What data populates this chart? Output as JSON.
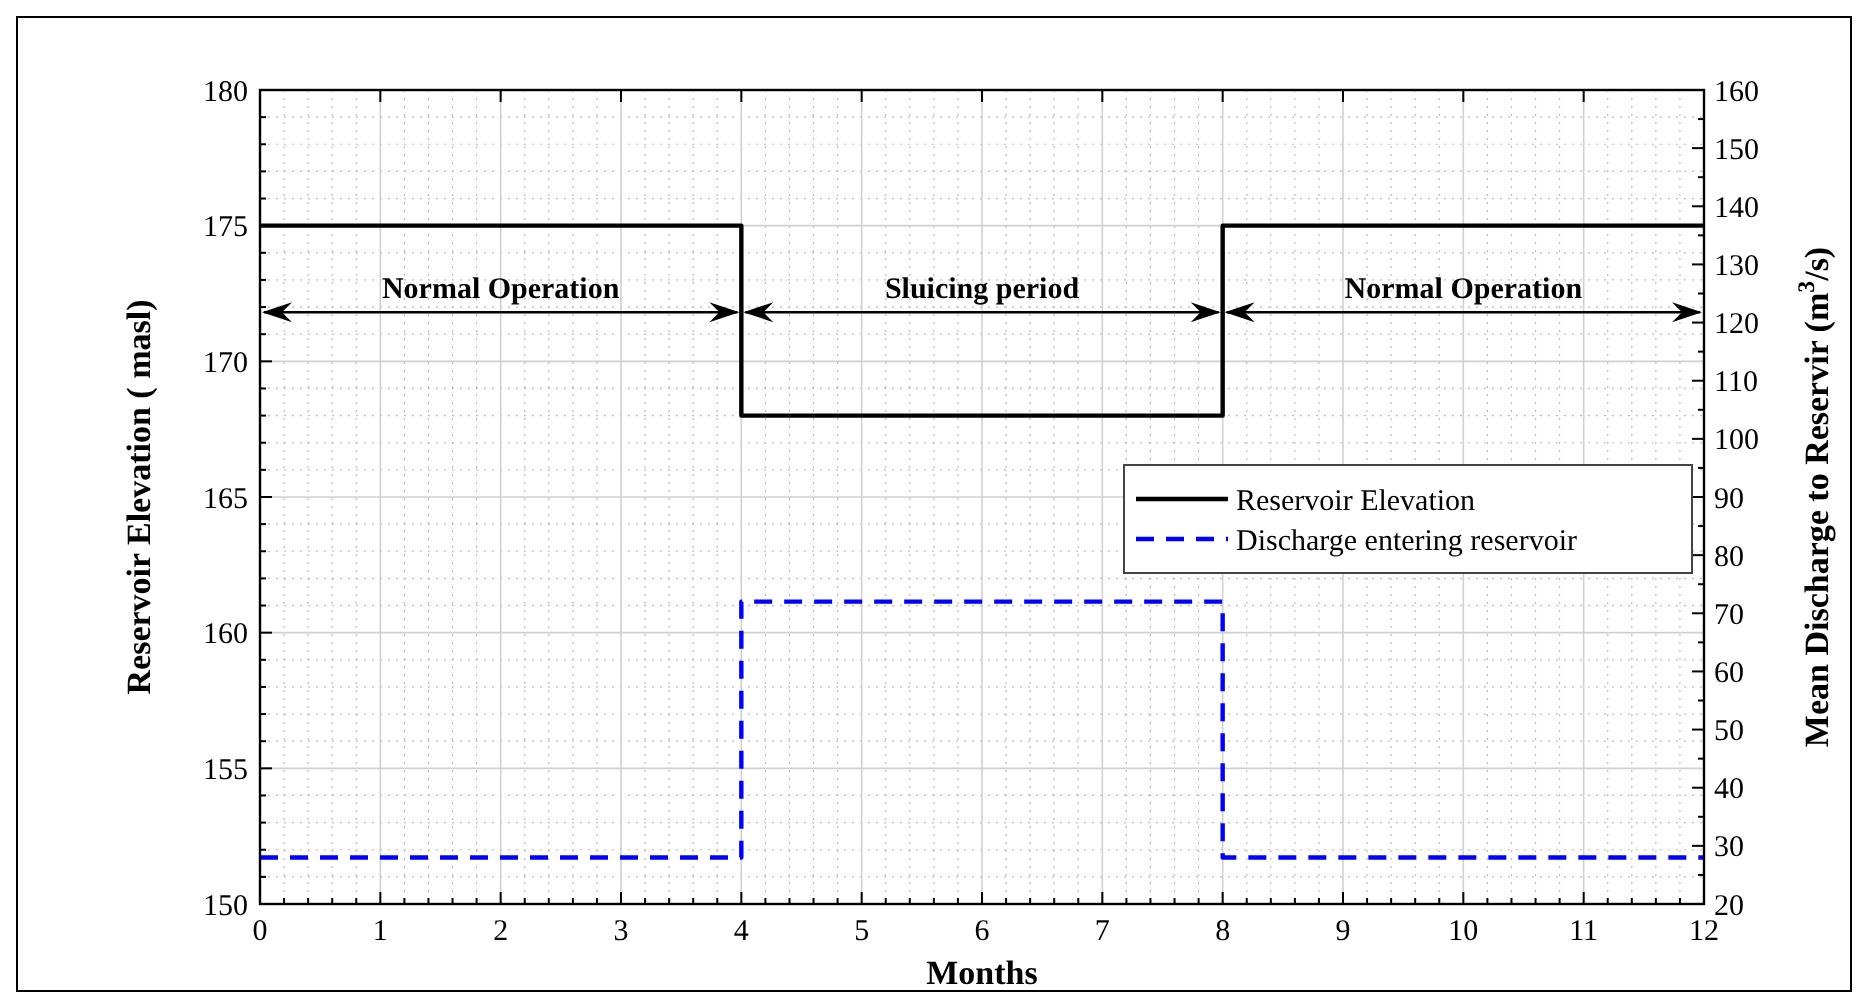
{
  "chart_data": {
    "type": "step",
    "xlabel": "Months",
    "ylabel": "Reservoir Elevation ( masl)",
    "y2label": "Mean Discharge to Reservir (m$^{3}$/s)",
    "x": [
      0,
      4,
      8,
      12
    ],
    "series": [
      {
        "name": "Reservoir Elevation",
        "color": "#000000",
        "values": [
          175,
          168,
          175,
          175
        ],
        "line_style": "solid"
      },
      {
        "name": "Discharge entering reservoir",
        "color": "#0000ff",
        "values": [
          28,
          72,
          28,
          28
        ],
        "axis": "y2",
        "line_style": "dashed"
      }
    ],
    "xlim": [
      0,
      12
    ],
    "xticks": [
      0,
      1,
      2,
      3,
      4,
      5,
      6,
      7,
      8,
      9,
      10,
      11,
      12
    ],
    "ylim": [
      150,
      180
    ],
    "yticks": [
      150,
      155,
      160,
      165,
      170,
      175,
      180
    ],
    "y2lim": [
      20,
      160
    ],
    "y2ticks": [
      20,
      30,
      40,
      50,
      60,
      70,
      80,
      90,
      100,
      110,
      120,
      130,
      140,
      150,
      160
    ],
    "grid": true,
    "legend": "center right",
    "annotations": [
      "Normal Operation",
      "Sluicing period",
      "Normal Operation"
    ]
  }
}
